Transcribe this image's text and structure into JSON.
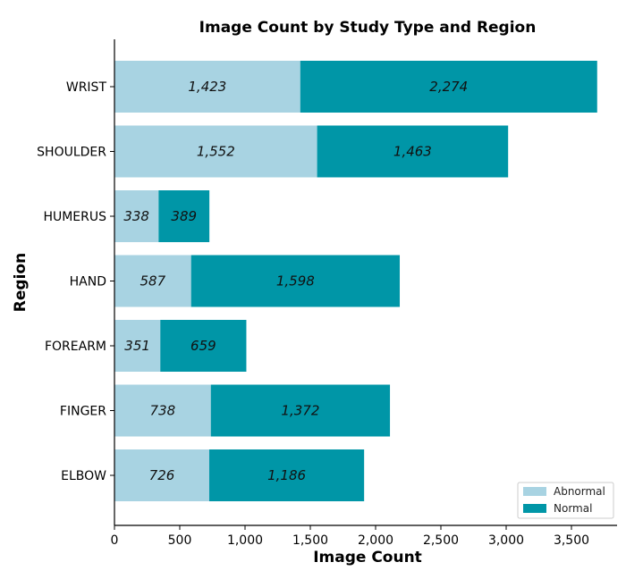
{
  "chart_data": {
    "type": "bar",
    "orientation": "horizontal",
    "stacked": true,
    "title": "Image Count by Study Type and Region",
    "xlabel": "Image Count",
    "ylabel": "Region",
    "categories": [
      "WRIST",
      "SHOULDER",
      "HUMERUS",
      "HAND",
      "FOREARM",
      "FINGER",
      "ELBOW"
    ],
    "series": [
      {
        "name": "Abnormal",
        "color": "#a8d3e2",
        "values": [
          1423,
          1552,
          338,
          587,
          351,
          738,
          726
        ],
        "labels": [
          "1,423",
          "1,552",
          "338",
          "587",
          "351",
          "738",
          "726"
        ]
      },
      {
        "name": "Normal",
        "color": "#0096a7",
        "values": [
          2274,
          1463,
          389,
          1598,
          659,
          1372,
          1186
        ],
        "labels": [
          "2,274",
          "1,463",
          "389",
          "1,598",
          "659",
          "1,372",
          "1,186"
        ]
      }
    ],
    "xlim": [
      0,
      3700
    ],
    "xticks": [
      0,
      500,
      1000,
      1500,
      2000,
      2500,
      3000,
      3500
    ],
    "xtick_labels": [
      "0",
      "500",
      "1,000",
      "1,500",
      "2,000",
      "2,500",
      "3,000",
      "3,500"
    ],
    "grid": false,
    "legend_position": "bottom-right"
  }
}
